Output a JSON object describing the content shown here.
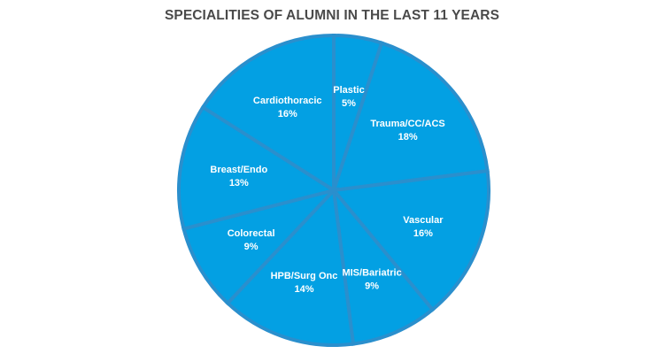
{
  "chart_data": {
    "type": "pie",
    "title": "SPECIALITIES OF ALUMNI IN THE LAST 11 YEARS",
    "slices": [
      {
        "label": "Plastic",
        "percent_label": "5%",
        "value": 5
      },
      {
        "label": "Trauma/CC/ACS",
        "percent_label": "18%",
        "value": 18
      },
      {
        "label": "Vascular",
        "percent_label": "16%",
        "value": 16
      },
      {
        "label": "MIS/Bariatric",
        "percent_label": "9%",
        "value": 9
      },
      {
        "label": "HPB/Surg Onc",
        "percent_label": "14%",
        "value": 14
      },
      {
        "label": "Colorectal",
        "percent_label": "9%",
        "value": 9
      },
      {
        "label": "Breast/Endo",
        "percent_label": "13%",
        "value": 13
      },
      {
        "label": "Cardiothoracic",
        "percent_label": "16%",
        "value": 16
      }
    ],
    "colors": {
      "slice_fill": "#03a0e3",
      "slice_border": "#2a8fcd",
      "label_text": "#ffffff",
      "title_text": "#4a4a4a"
    }
  }
}
